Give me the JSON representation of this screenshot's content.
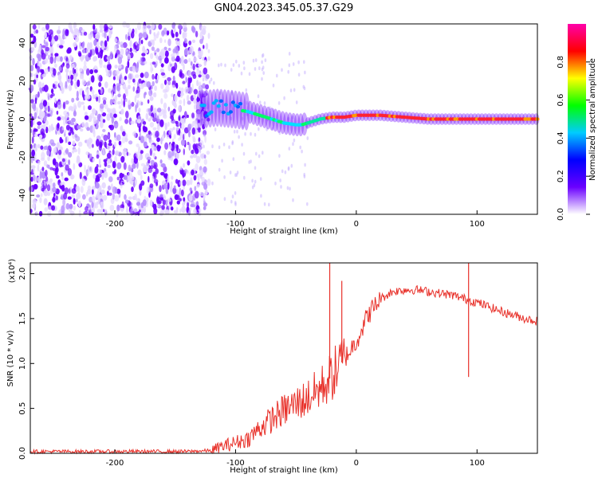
{
  "title": "GN04.2023.345.05.37.G29",
  "chart_data": [
    {
      "type": "heatmap",
      "xlabel": "Height of straight line (km)",
      "ylabel": "Frequency (Hz)",
      "xlim": [
        -270,
        150
      ],
      "ylim": [
        -50,
        50
      ],
      "xticks": [
        -200,
        -100,
        0,
        100
      ],
      "yticks": [
        -40,
        -20,
        0,
        20,
        40
      ],
      "colorbar": {
        "label": "Normalized spectral amplitude",
        "range": [
          0,
          1
        ],
        "ticks": [
          "0.0",
          "0.2",
          "0.4",
          "0.6",
          "0.8"
        ],
        "colors": [
          "#ffffff",
          "#6a00ff",
          "#0000ff",
          "#00ccff",
          "#00ff00",
          "#ffff00",
          "#ff0000",
          "#ff00aa"
        ]
      },
      "noise_region_x": [
        -270,
        -130
      ],
      "ridge": {
        "x": [
          -130,
          -115,
          -100,
          -90,
          -80,
          -70,
          -60,
          -50,
          -45,
          -40,
          -30,
          -20,
          -10,
          0,
          20,
          40,
          60,
          80,
          100,
          120,
          150
        ],
        "y": [
          5,
          6,
          5,
          4,
          2,
          0,
          -2,
          -3,
          -3,
          -2,
          0,
          1,
          1,
          2,
          2,
          1,
          0,
          0,
          0,
          0,
          0
        ]
      }
    },
    {
      "type": "line",
      "xlabel": "Height of straight line (km)",
      "ylabel": "SNR (10 * v/v)",
      "multiplier": "(x10⁴)",
      "xlim": [
        -270,
        150
      ],
      "ylim": [
        0,
        2.12
      ],
      "xticks": [
        -200,
        -100,
        0,
        100
      ],
      "yticks": [
        "0.0",
        "0.5",
        "1.0",
        "1.5",
        "2.0"
      ],
      "color": "#e8312a",
      "series": [
        {
          "x": [
            -270,
            -200,
            -140,
            -120,
            -110,
            -100,
            -90,
            -80,
            -70,
            -60,
            -50,
            -40,
            -30,
            -20,
            -10,
            0,
            10,
            20,
            30,
            40,
            50,
            60,
            70,
            80,
            90,
            100,
            110,
            120,
            130,
            140,
            150
          ],
          "y": [
            0.02,
            0.02,
            0.02,
            0.03,
            0.08,
            0.12,
            0.16,
            0.28,
            0.38,
            0.48,
            0.55,
            0.62,
            0.72,
            0.86,
            1.05,
            1.25,
            1.55,
            1.72,
            1.8,
            1.82,
            1.82,
            1.8,
            1.78,
            1.76,
            1.72,
            1.68,
            1.63,
            1.58,
            1.54,
            1.5,
            1.47
          ]
        }
      ],
      "spikes": [
        {
          "x": -22,
          "y": 2.12
        },
        {
          "x": -12,
          "y": 1.92
        },
        {
          "x": 93,
          "y": 2.12
        },
        {
          "x": 93,
          "y": 0.85
        }
      ]
    }
  ]
}
